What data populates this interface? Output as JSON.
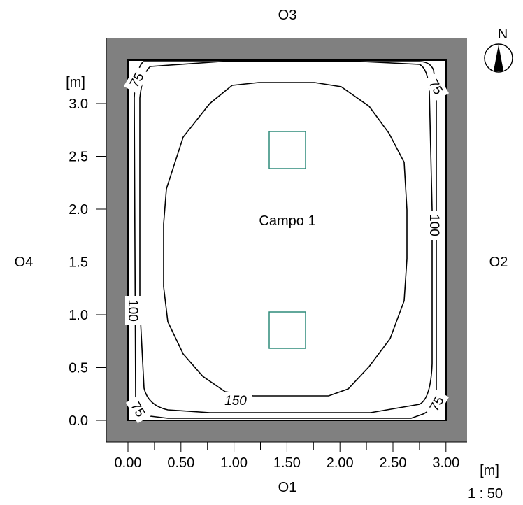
{
  "orientation": {
    "top": "O3",
    "bottom": "O1",
    "left": "O4",
    "right": "O2"
  },
  "compass": {
    "label": "N",
    "icon": "compass-north-icon"
  },
  "room": {
    "label": "Campo 1"
  },
  "axes": {
    "x_unit": "[m]",
    "y_unit": "[m]",
    "x_ticks": [
      "0.00",
      "0.50",
      "1.00",
      "1.50",
      "2.00",
      "2.50",
      "3.00"
    ],
    "y_ticks": [
      "0.0",
      "0.5",
      "1.0",
      "1.5",
      "2.0",
      "2.5",
      "3.0"
    ]
  },
  "scale": "1 : 50",
  "isolines": {
    "outer_top_left": "75",
    "outer_top_right": "75",
    "outer_bottom_left": "75",
    "outer_bottom_right": "75",
    "middle_left": "100",
    "middle_right": "100",
    "inner": "150"
  },
  "colors": {
    "wall": "#808080",
    "luminaire": "#2e8b7a",
    "line": "#000000"
  }
}
